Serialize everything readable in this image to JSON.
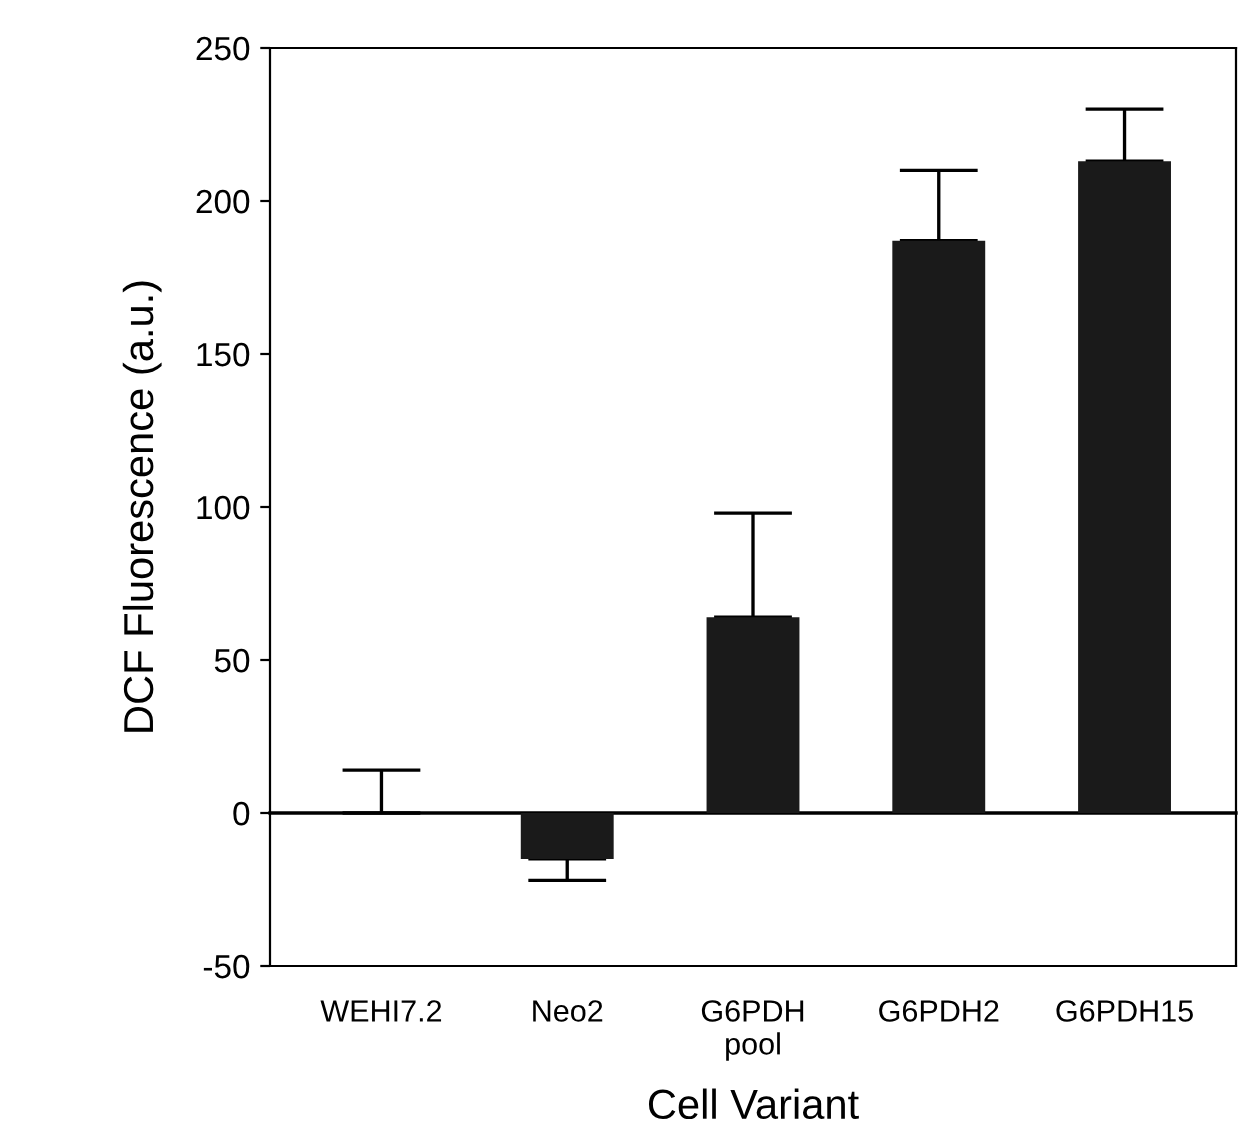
{
  "chart_data": {
    "type": "bar",
    "categories": [
      "WEHI7.2",
      "Neo2",
      "G6PDH\npool",
      "G6PDH2",
      "G6PDH15"
    ],
    "series": [
      {
        "color": "#1a1a1a",
        "values": [
          0,
          -15,
          64,
          187,
          213
        ],
        "errors": [
          [
            0,
            14
          ],
          [
            -22,
            -15
          ],
          [
            64,
            98
          ],
          [
            187,
            210
          ],
          [
            213,
            230
          ]
        ]
      }
    ],
    "xlabel": "Cell Variant",
    "ylabel": "DCF Fluorescence (a.u.)",
    "ylim": [
      -50,
      250
    ],
    "yticks": [
      -50,
      0,
      50,
      100,
      150,
      200,
      250
    ],
    "legend": false
  }
}
